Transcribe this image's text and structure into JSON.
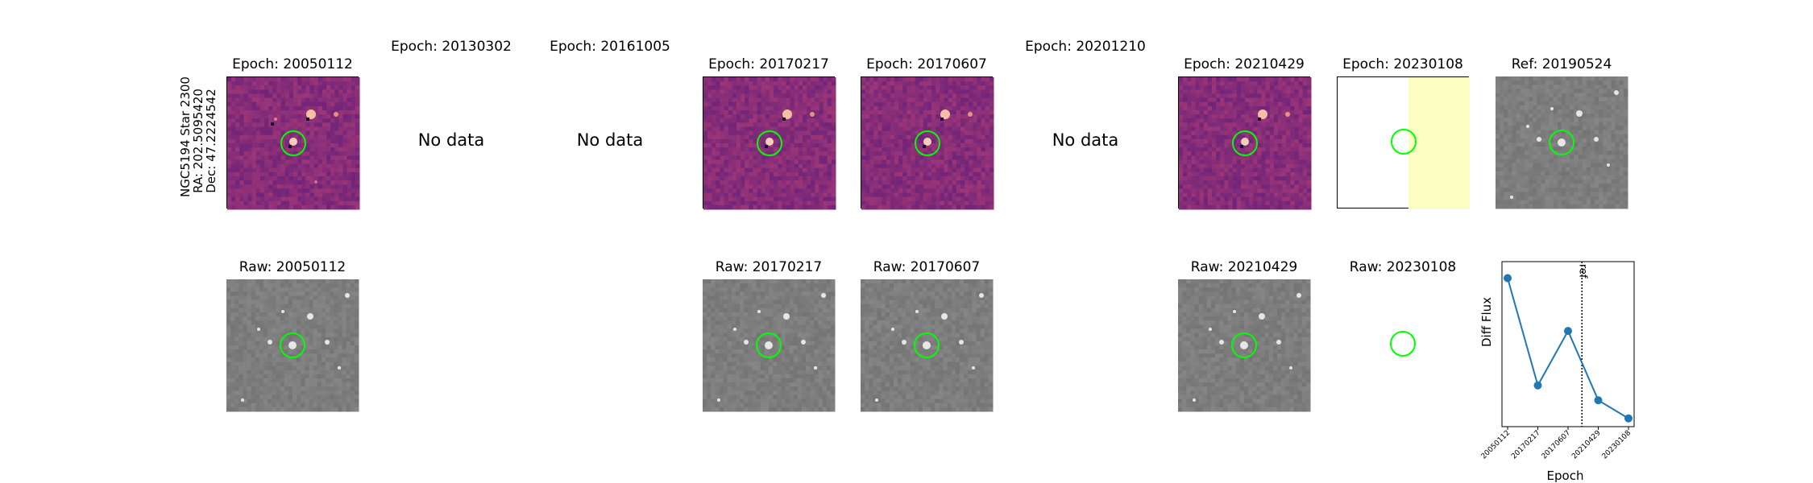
{
  "target": {
    "name": "NGC5194 Star 2300",
    "ra": "RA: 202.5095420",
    "dec": "Dec: 47.2224542"
  },
  "diff_row": [
    {
      "title": "Epoch: 20050112",
      "state": "image",
      "cmap": "magma"
    },
    {
      "title": "Epoch: 20130302",
      "state": "nodata",
      "message": "No data"
    },
    {
      "title": "Epoch: 20161005",
      "state": "nodata",
      "message": "No data"
    },
    {
      "title": "Epoch: 20170217",
      "state": "image",
      "cmap": "magma"
    },
    {
      "title": "Epoch: 20170607",
      "state": "image",
      "cmap": "magma"
    },
    {
      "title": "Epoch: 20201210",
      "state": "nodata",
      "message": "No data"
    },
    {
      "title": "Epoch: 20210429",
      "state": "image",
      "cmap": "magma"
    },
    {
      "title": "Epoch: 20230108",
      "state": "partial"
    },
    {
      "title": "Ref: 20190524",
      "state": "gray"
    }
  ],
  "raw_row": [
    {
      "title": "Raw: 20050112",
      "state": "gray"
    },
    {
      "title": "Raw: 20170217",
      "state": "gray"
    },
    {
      "title": "Raw: 20170607",
      "state": "gray"
    },
    {
      "title": "Raw: 20210429",
      "state": "gray"
    },
    {
      "title": "Raw: 20230108",
      "state": "empty"
    }
  ],
  "colors": {
    "aperture": "#00ff00",
    "line": "#1f77b4",
    "partial_fill": "#fbffc2",
    "magma_base": "#a8457a"
  },
  "chart_data": {
    "type": "line",
    "title": "",
    "xlabel": "Epoch",
    "ylabel": "Diff Flux",
    "categories": [
      "20050112",
      "20170217",
      "20170607",
      "20210429",
      "20230108"
    ],
    "series": [
      {
        "values": [
          0.9,
          0.25,
          0.58,
          0.16,
          0.05
        ]
      }
    ],
    "ylim": [
      0,
      1
    ],
    "yticks_shown": false,
    "reference_line": {
      "label": "ref",
      "position_between": [
        "20170607",
        "20210429"
      ],
      "fraction": 0.46,
      "style": "dotted"
    },
    "grid": false
  }
}
